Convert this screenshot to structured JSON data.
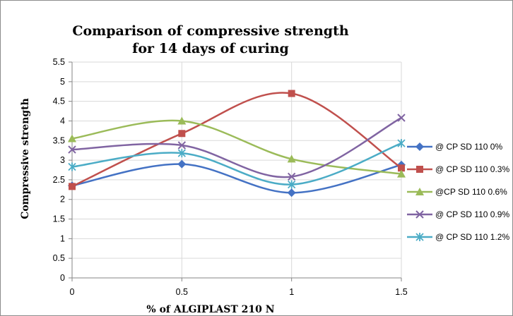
{
  "chart_data": {
    "type": "line",
    "title": "Comparison of compressive strength for 14 days of curing",
    "title_lines": [
      "Comparison of compressive strength",
      "for 14 days of curing"
    ],
    "xlabel": "% of ALGIPLAST 210 N",
    "ylabel": "Compressive  strength",
    "x": [
      0,
      0.5,
      1,
      1.5
    ],
    "x_ticks": [
      0,
      0.5,
      1,
      1.5
    ],
    "x_tick_labels": [
      "0",
      "0.5",
      "1",
      "1.5"
    ],
    "xlim": [
      0,
      1.5
    ],
    "ylim": [
      0,
      5.5
    ],
    "y_ticks": [
      0,
      0.5,
      1,
      1.5,
      2,
      2.5,
      3,
      3.5,
      4,
      4.5,
      5,
      5.5
    ],
    "y_tick_labels": [
      "0",
      "0.5",
      "1",
      "1.5",
      "2",
      "2.5",
      "3",
      "3.5",
      "4",
      "4.5",
      "5",
      "5.5"
    ],
    "grid": true,
    "smooth": true,
    "legend_position": "right",
    "series": [
      {
        "name": "@ CP SD 110 0%",
        "values": [
          2.35,
          2.9,
          2.17,
          2.88
        ],
        "color": "#4472c4",
        "marker": "diamond"
      },
      {
        "name": "@ CP SD 110 0.3%",
        "values": [
          2.33,
          3.68,
          4.7,
          2.8
        ],
        "color": "#c0504d",
        "marker": "square"
      },
      {
        "name": "@CP SD 110 0.6%",
        "values": [
          3.55,
          4.0,
          3.03,
          2.65
        ],
        "color": "#9bbb59",
        "marker": "triangle"
      },
      {
        "name": "@ CP SD 110 0.9%",
        "values": [
          3.27,
          3.38,
          2.58,
          4.08
        ],
        "color": "#8064a2",
        "marker": "x"
      },
      {
        "name": "@ CP SD 110 1.2%",
        "values": [
          2.83,
          3.18,
          2.38,
          3.43
        ],
        "color": "#4bacc6",
        "marker": "star"
      }
    ]
  }
}
